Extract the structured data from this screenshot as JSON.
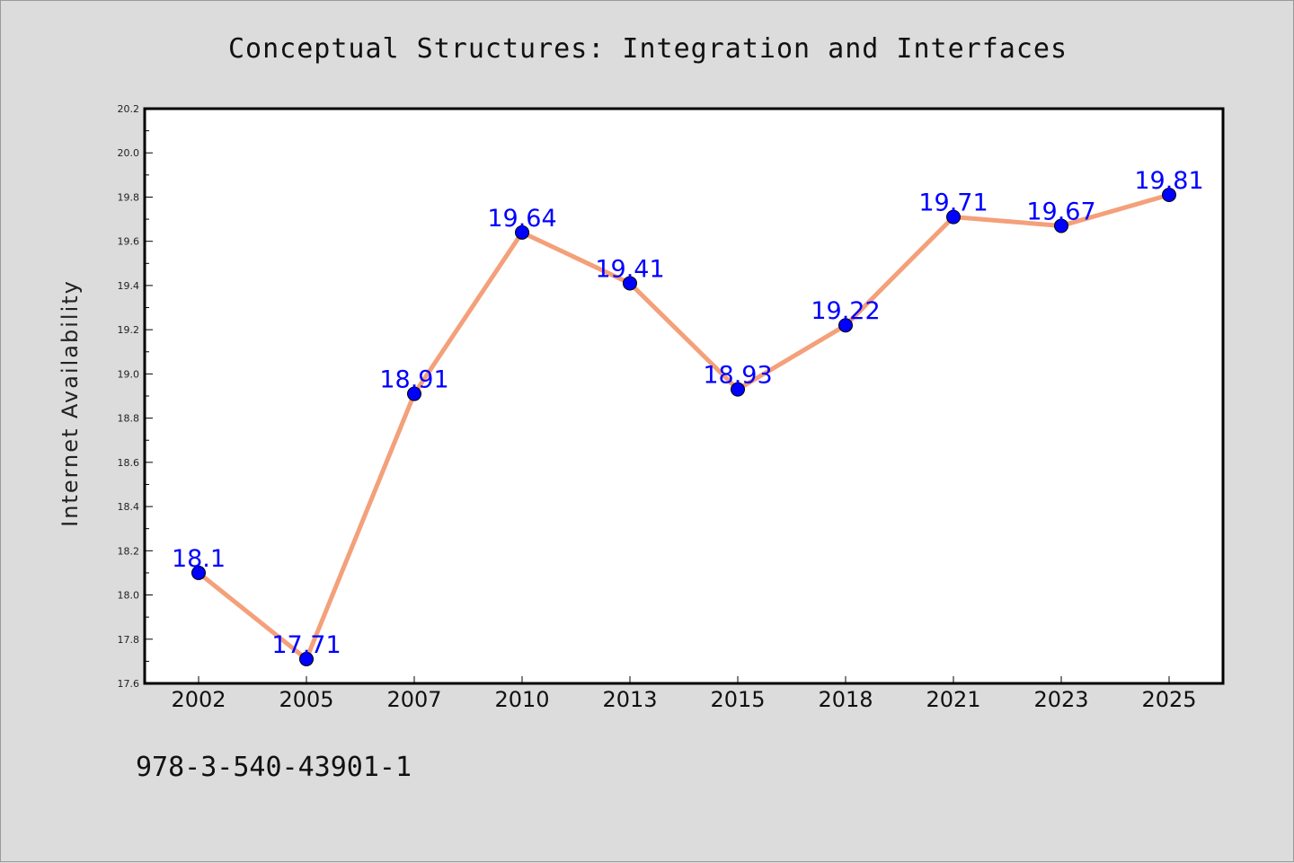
{
  "chart_data": {
    "type": "line",
    "title": "Conceptual Structures: Integration and Interfaces",
    "xlabel": "",
    "ylabel": "Internet Availability",
    "categories": [
      "2002",
      "2005",
      "2007",
      "2010",
      "2013",
      "2015",
      "2018",
      "2021",
      "2023",
      "2025"
    ],
    "series": [
      {
        "values": [
          18.1,
          17.71,
          18.91,
          19.64,
          19.41,
          18.93,
          19.22,
          19.71,
          19.67,
          19.81
        ],
        "data_labels": [
          "18.1",
          "17.71",
          "18.91",
          "19.64",
          "19.41",
          "18.93",
          "19.22",
          "19.71",
          "19.67",
          "19.81"
        ],
        "line_color": "#f4a07a",
        "marker_color": "#0000ff"
      }
    ],
    "ylim": [
      17.6,
      20.2
    ],
    "yticks": [
      "17.6",
      "17.8",
      "18.0",
      "18.2",
      "18.4",
      "18.6",
      "18.8",
      "19.0",
      "19.2",
      "19.4",
      "19.6",
      "19.8",
      "20.0",
      "20.2"
    ],
    "grid": false,
    "legend": "none",
    "label_color": "#0000ff"
  },
  "footer": {
    "isbn": "978-3-540-43901-1"
  }
}
